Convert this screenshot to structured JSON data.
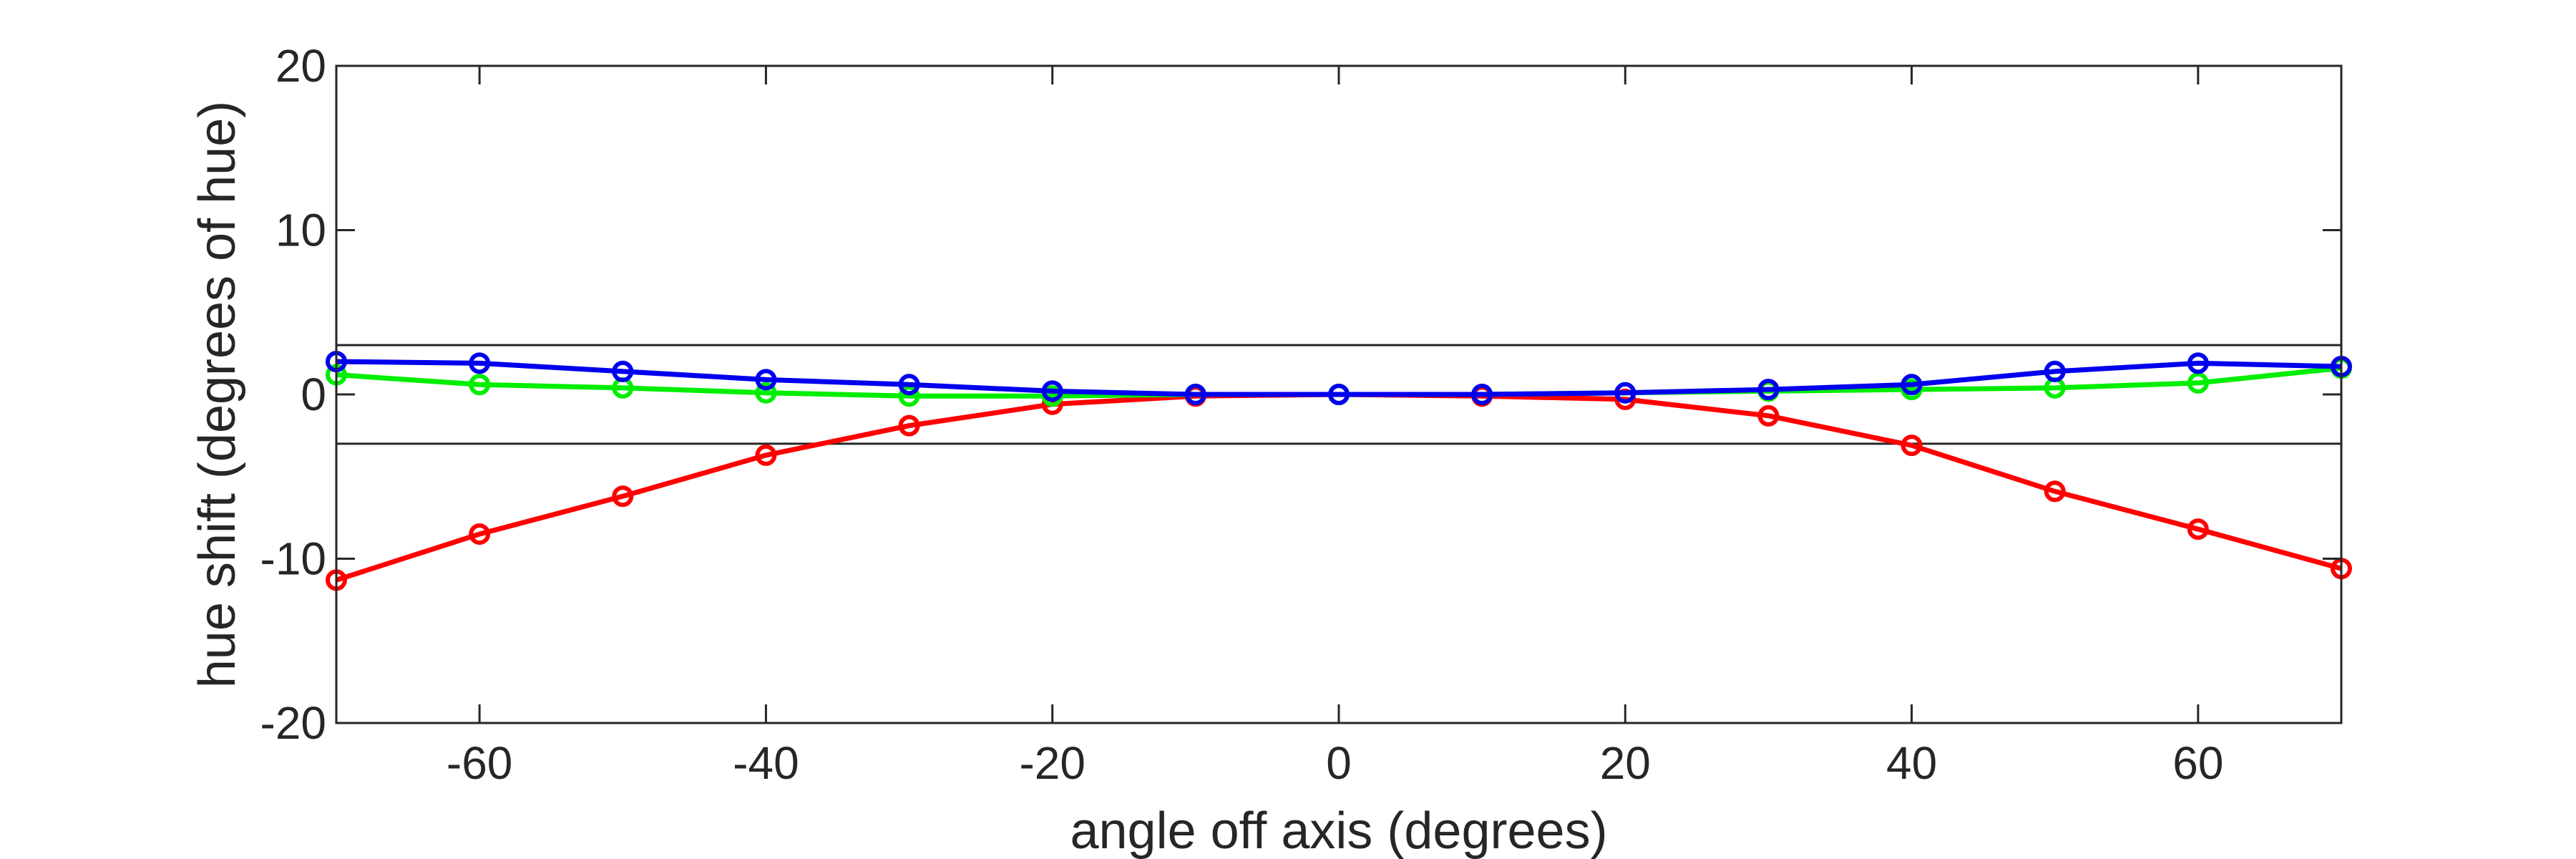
{
  "chart_data": {
    "type": "line",
    "title": "",
    "xlabel": "angle off axis (degrees)",
    "ylabel": "hue shift (degrees of hue)",
    "xlim": [
      -70,
      70
    ],
    "ylim": [
      -20,
      20
    ],
    "x_ticks": [
      -60,
      -40,
      -20,
      0,
      20,
      40,
      60
    ],
    "y_ticks": [
      -20,
      -10,
      0,
      10,
      20
    ],
    "grid": false,
    "legend": "none",
    "reference_lines": [
      3,
      -3
    ],
    "x": [
      -70,
      -60,
      -50,
      -40,
      -30,
      -20,
      -10,
      0,
      10,
      20,
      30,
      40,
      50,
      60,
      70
    ],
    "series": [
      {
        "color": "#ff0000",
        "values": [
          -11.3,
          -8.5,
          -6.2,
          -3.7,
          -1.9,
          -0.6,
          -0.1,
          0,
          -0.1,
          -0.3,
          -1.3,
          -3.1,
          -5.9,
          -8.2,
          -10.6
        ]
      },
      {
        "color": "#00ee00",
        "values": [
          1.2,
          0.6,
          0.4,
          0.1,
          -0.1,
          -0.1,
          0,
          0,
          0,
          0.1,
          0.2,
          0.3,
          0.4,
          0.7,
          1.6
        ]
      },
      {
        "color": "#0000ee",
        "values": [
          2.0,
          1.9,
          1.4,
          0.9,
          0.6,
          0.2,
          0,
          0,
          0,
          0.1,
          0.3,
          0.6,
          1.4,
          1.9,
          1.7
        ]
      }
    ]
  }
}
